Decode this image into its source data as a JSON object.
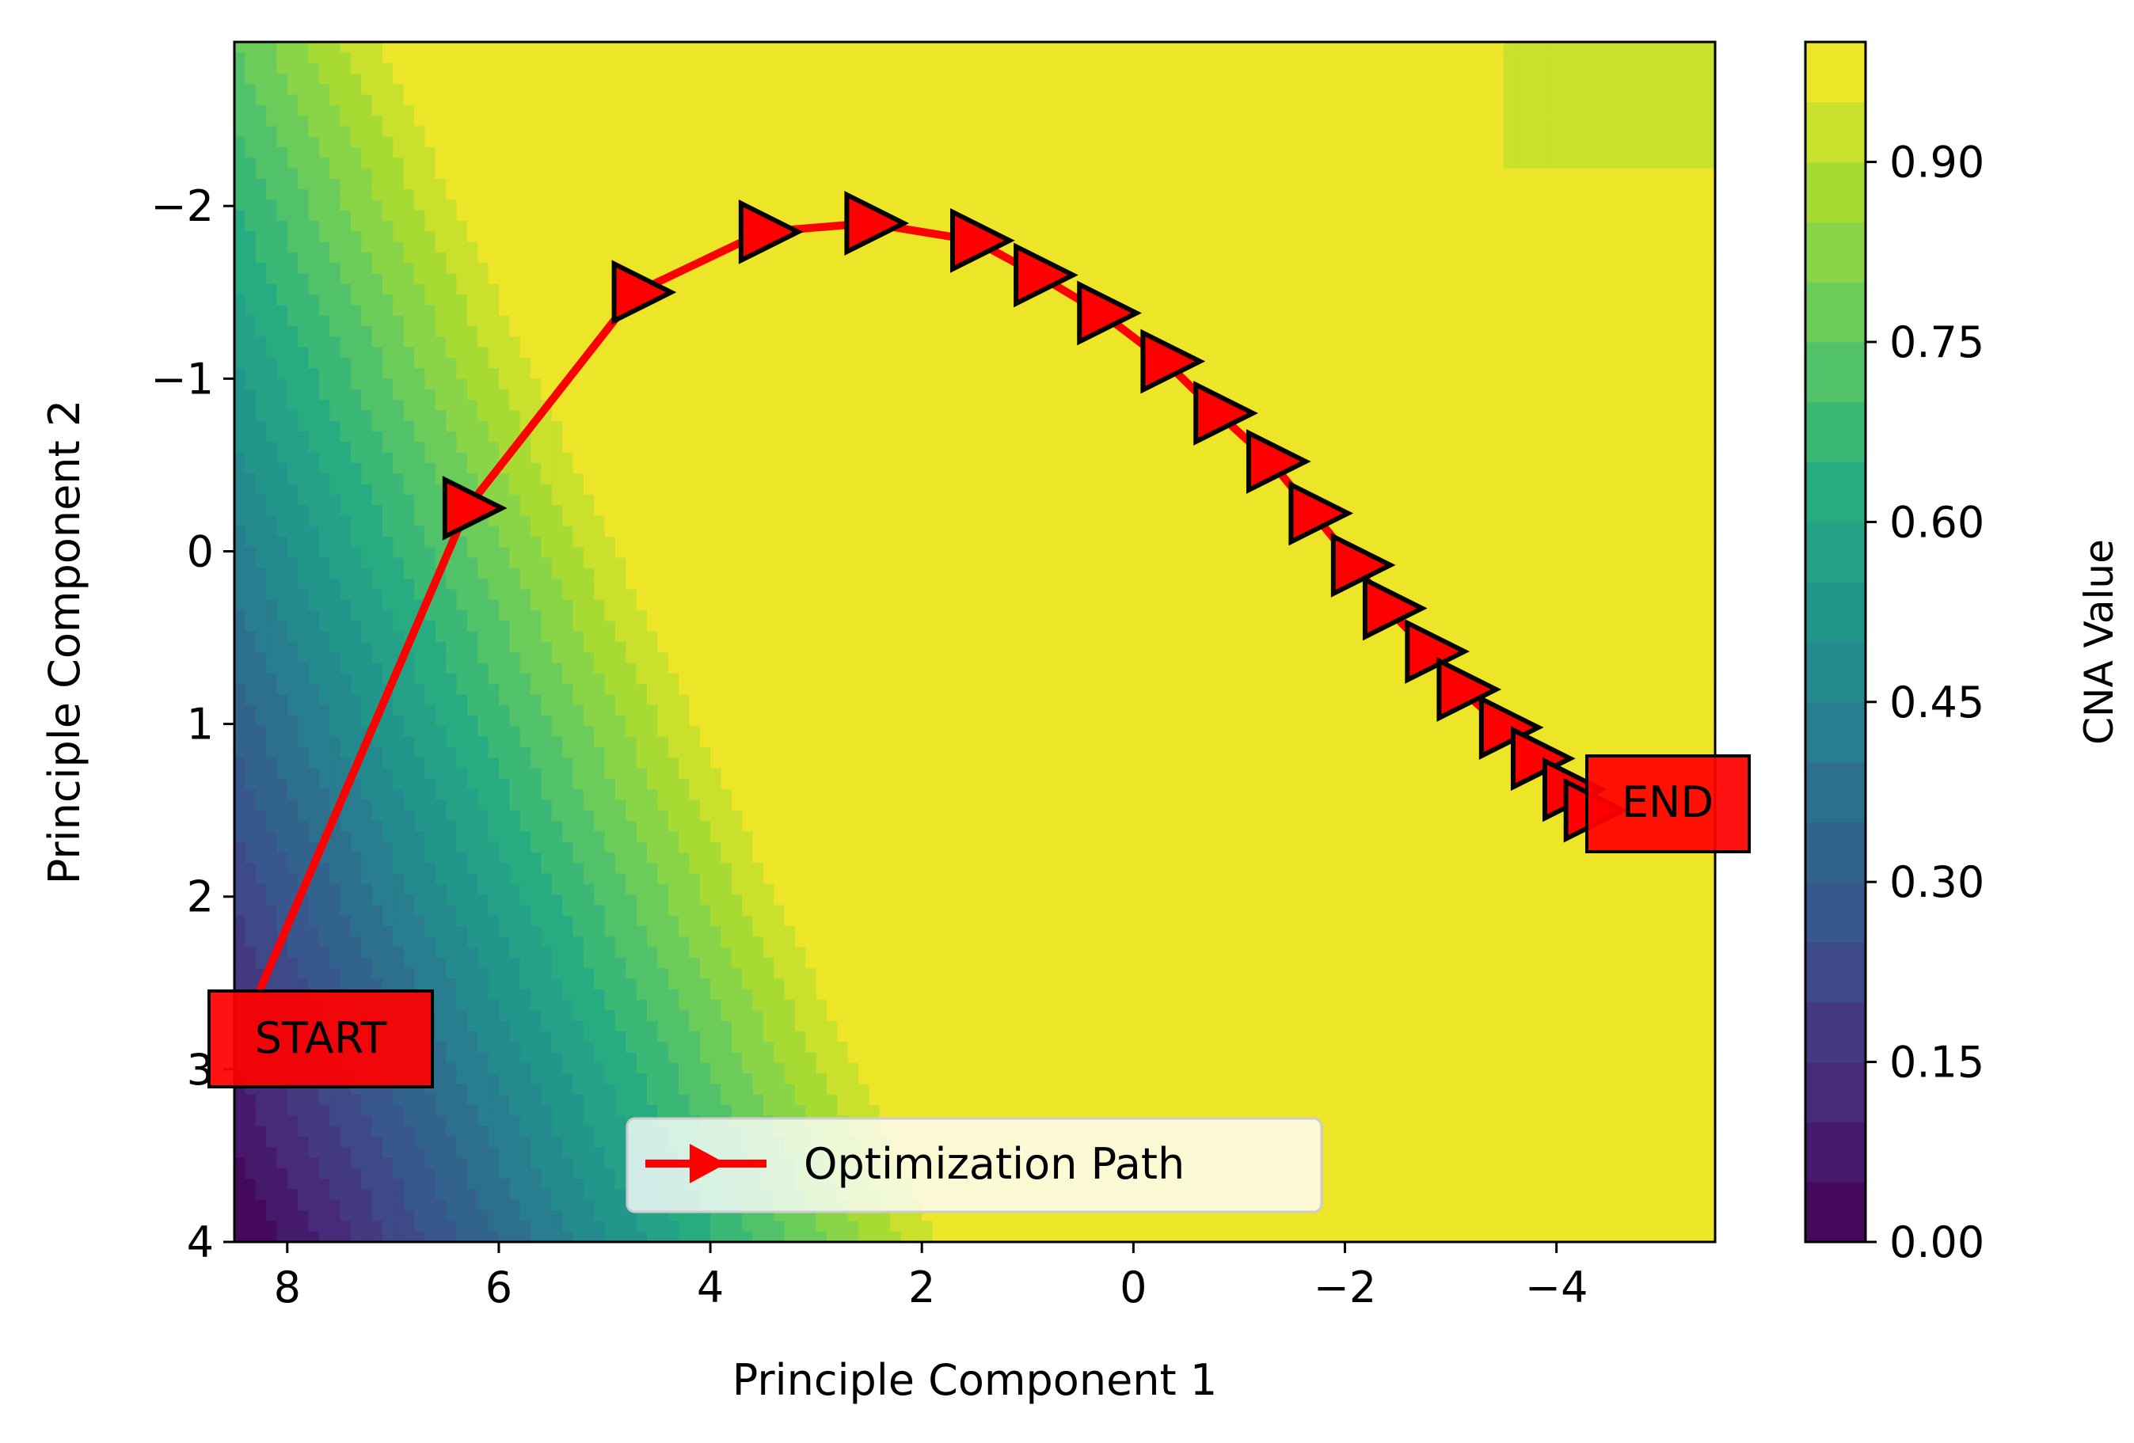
{
  "chart_data": {
    "type": "contour",
    "xlabel": "Principle Component 1",
    "ylabel": "Principle Component 2",
    "xlim": [
      8.5,
      -5.5
    ],
    "ylim": [
      4.0,
      -2.95
    ],
    "x_inverted": true,
    "y_inverted": true,
    "x_ticks": [
      8,
      6,
      4,
      2,
      0,
      -2,
      -4
    ],
    "x_tick_labels": [
      "8",
      "6",
      "4",
      "2",
      "0",
      "−2",
      "−4"
    ],
    "y_ticks": [
      -2,
      -1,
      0,
      1,
      2,
      3,
      4
    ],
    "y_tick_labels": [
      "−2",
      "−1",
      "0",
      "1",
      "2",
      "3",
      "4"
    ],
    "colorbar": {
      "label": "CNA Value",
      "range": [
        0.0,
        1.0
      ],
      "ticks": [
        0.0,
        0.15,
        0.3,
        0.45,
        0.6,
        0.75,
        0.9
      ],
      "tick_labels": [
        "0.00",
        "0.15",
        "0.30",
        "0.45",
        "0.60",
        "0.75",
        "0.90"
      ],
      "levels": 20,
      "colormap": "viridis"
    },
    "series": [
      {
        "name": "Optimization Path",
        "color": "#ff0000",
        "marker": "triangle-right",
        "x": [
          8.3,
          6.3,
          4.7,
          3.5,
          2.5,
          1.5,
          0.9,
          0.3,
          -0.3,
          -0.8,
          -1.3,
          -1.7,
          -2.1,
          -2.4,
          -2.8,
          -3.1,
          -3.5,
          -3.8,
          -4.1,
          -4.3
        ],
        "y": [
          2.6,
          -0.25,
          -1.5,
          -1.85,
          -1.9,
          -1.8,
          -1.6,
          -1.38,
          -1.1,
          -0.8,
          -0.52,
          -0.22,
          0.08,
          0.33,
          0.58,
          0.8,
          1.02,
          1.2,
          1.38,
          1.5
        ]
      }
    ],
    "annotations": [
      {
        "text": "START",
        "x": 8.3,
        "y": 2.8
      },
      {
        "text": "END",
        "x": -5.3,
        "y": 1.47
      }
    ],
    "legend": {
      "placement": "lower-center",
      "label": "Optimization Path"
    },
    "grid": false
  }
}
